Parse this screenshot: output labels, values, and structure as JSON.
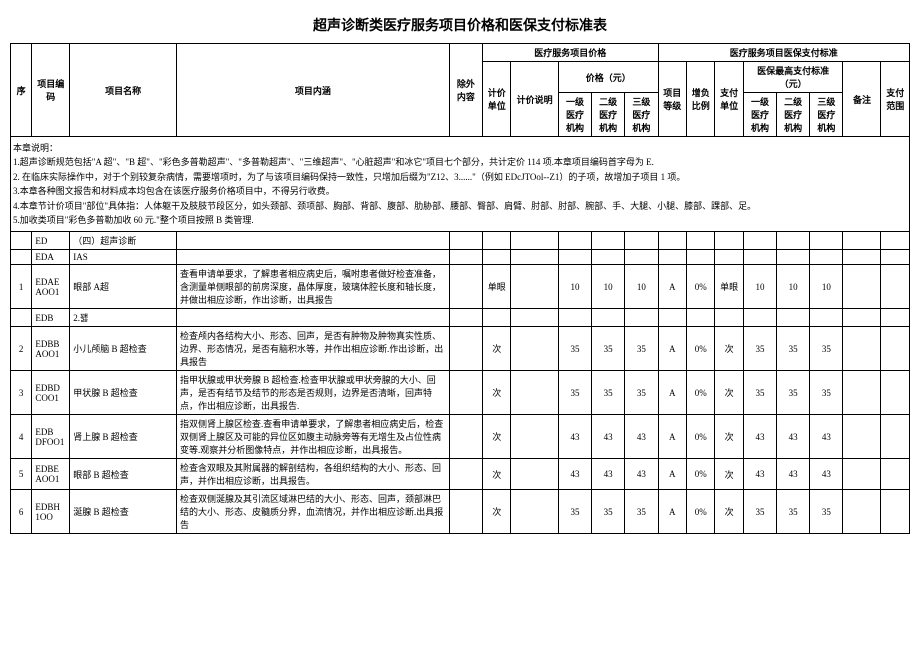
{
  "title": "超声诊断类医疗服务项目价格和医保支付标准表",
  "headers": {
    "seq": "序",
    "code": "项目编码",
    "name": "项目名称",
    "content": "项目内涵",
    "except": "除外内容",
    "price_group": "医疗服务项目价格",
    "pay_group": "医疗服务项目医保支付标准",
    "unit": "计价单位",
    "note": "计价说明",
    "price_yuan": "价格（元）",
    "lvl": "项目等级",
    "ratio": "增负比例",
    "pay_unit": "支付单位",
    "pay_std": "医保最高支付标准（元）",
    "remark": "备注",
    "scope": "支付范围",
    "l1": "一级医疗机构",
    "l2": "二级医疗机构",
    "l3": "三级医疗机构"
  },
  "notes": {
    "n0": "本章说明：",
    "n1": "1.超声诊断规范包括\"A 超\"、\"B 超\"、\"彩色多普勒超声\"、\"多普勒超声\"、\"三维超声\"、\"心脏超声\"和冰它\"项目七个部分，共计定价 114 项.本章项目编码首字母为 E.",
    "n2": "2. 在临床实际操作中，对于个别较复杂病情，需要增项时，为了与该项目编码保持一致性，只增加后缀为\"Z12、3......\"（例如 EDcJTOol--Z1）的子项，故增加子项目 1 项。",
    "n3": "3.本章各种图文报告和材料成本均包含在该医疗服务价格项目中，不得另行收费。",
    "n4": "4.本章节计价项目\"部位\"具体指：人体躯干及肢肢节段区分，如头颈部、颈项部、胸部、背部、腹部、肋胁部、腰部、臀部、肩臂、肘部、肘部、腕部、手、大腿、小腿、膝部、踝部、足。",
    "n5": "5.加收类项目\"彩色多普勒加收 60 元.\"整个项目按照 B 类管理."
  },
  "section": {
    "ed": "ED",
    "ed_label": "（四）超声诊断",
    "eda": "EDA",
    "eda_label": "IAS",
    "edb": "EDB",
    "edb_label": "2.꽳"
  },
  "rows": [
    {
      "seq": "1",
      "code": "EDAE AOO1",
      "name": "眼部 A﻿超",
      "content": "查看申请单要求，了解患者相应病史后，嘱咐患者做好检查准备，含测量单侧眼部的前房深度，晶体厚度，玻璃体腔长度和轴长度，并做出相应诊断，作出诊断，出具报告",
      "unit": "单眼",
      "p1": "10",
      "p2": "10",
      "p3": "10",
      "lvl": "A",
      "ratio": "0%",
      "punit": "单眼",
      "s1": "10",
      "s2": "10",
      "s3": "10"
    },
    {
      "seq": "2",
      "code": "EDBB AOO1",
      "name": "小儿颅脑 B 超检查",
      "content": "检查颅内各结构大小、形态、回声，是否有肿物及肿物真实性质、边界、形态情况，是否有脑积水等，并作出相应诊断.作出诊断，出具报告",
      "unit": "次",
      "p1": "35",
      "p2": "35",
      "p3": "35",
      "lvl": "A",
      "ratio": "0%",
      "punit": "次",
      "s1": "35",
      "s2": "35",
      "s3": "35"
    },
    {
      "seq": "3",
      "code": "EDBD COO1",
      "name": "甲状腺 B 超检查",
      "content": "指甲状腺或甲状旁腺 B 超检查.检查甲状腺或甲状旁腺的大小、回声，是否有结节及结节的形态是否规则，边界是否清晰，回声特点，作出相应诊断，出具报告.",
      "unit": "次",
      "p1": "35",
      "p2": "35",
      "p3": "35",
      "lvl": "A",
      "ratio": "0%",
      "punit": "次",
      "s1": "35",
      "s2": "35",
      "s3": "35"
    },
    {
      "seq": "4",
      "code": "EDB DFOO1",
      "name": "肾上腺 B 超检查",
      "content": "指双侧肾上腺区检查.查看申请单要求，了解患者相应病史后，检查双侧肾上腺区及可能的异位区如腹主动脉旁等有无增生及占位性病变等.观察并分析图像特点，并作出相应诊断，出具报告。",
      "unit": "次",
      "p1": "43",
      "p2": "43",
      "p3": "43",
      "lvl": "A",
      "ratio": "0%",
      "punit": "次",
      "s1": "43",
      "s2": "43",
      "s3": "43"
    },
    {
      "seq": "5",
      "code": "EDBE AOO1",
      "name": "眼部 B 超检查",
      "content": "检查含双眼及其附属器的解剖结构，各组织结构的大小、形态、回声，并作出相应诊断，出具报告。",
      "unit": "次",
      "p1": "43",
      "p2": "43",
      "p3": "43",
      "lvl": "A",
      "ratio": "0%",
      "punit": "次",
      "s1": "43",
      "s2": "43",
      "s3": "43"
    },
    {
      "seq": "6",
      "code": "EDBH 1OO",
      "name": "涎腺 B 超检查",
      "content": "检查双侧涎腺及其引流区域淋巴结的大小、形态、回声，颈部淋巴结的大小、形态、皮髓质分界，血流情况，并作出相应诊断.出具报告",
      "unit": "次",
      "p1": "35",
      "p2": "35",
      "p3": "35",
      "lvl": "A",
      "ratio": "0%",
      "punit": "次",
      "s1": "35",
      "s2": "35",
      "s3": "35"
    }
  ]
}
